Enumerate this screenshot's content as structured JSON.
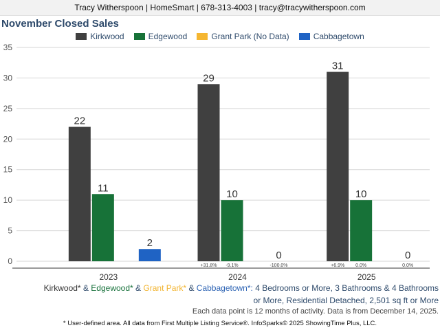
{
  "banner": "Tracy Witherspoon | HomeSmart | 678-313-4003 | tracy@tracywitherspoon.com",
  "chart_data": {
    "type": "bar",
    "title": "November Closed Sales",
    "categories": [
      "2023",
      "2024",
      "2025"
    ],
    "ylim": [
      0,
      35
    ],
    "yticks": [
      0,
      5,
      10,
      15,
      20,
      25,
      30,
      35
    ],
    "grid": true,
    "legend_position": "top-center",
    "series": [
      {
        "name": "Kirkwood",
        "color": "#404040",
        "values": [
          22,
          29,
          31
        ],
        "labels": [
          "22",
          "29",
          "31"
        ]
      },
      {
        "name": "Edgewood",
        "color": "#177238",
        "values": [
          11,
          10,
          10
        ],
        "labels": [
          "11",
          "10",
          "10"
        ]
      },
      {
        "name": "Grant Park (No Data)",
        "color": "#f5b631",
        "values": [
          null,
          null,
          null
        ],
        "labels": [
          "",
          "",
          ""
        ]
      },
      {
        "name": "Cabbagetown",
        "color": "#1f63c4",
        "values": [
          2,
          0,
          0
        ],
        "labels": [
          "2",
          "0",
          "0"
        ]
      }
    ],
    "change_labels": [
      {
        "category": "2024",
        "series": "Kirkwood",
        "text": "+31.8%"
      },
      {
        "category": "2024",
        "series": "Edgewood",
        "text": "-9.1%"
      },
      {
        "category": "2024",
        "series": "Cabbagetown",
        "text": "-100.0%"
      },
      {
        "category": "2025",
        "series": "Kirkwood",
        "text": "+6.9%"
      },
      {
        "category": "2025",
        "series": "Edgewood",
        "text": "0.0%"
      },
      {
        "category": "2025",
        "series": "Cabbagetown",
        "text": "0.0%"
      }
    ]
  },
  "criteria": {
    "kirkwood": "Kirkwood*",
    "amp": "&",
    "edgewood": "Edgewood*",
    "grant_park": "Grant Park*",
    "cabbagetown": "Cabbagetown*:",
    "line1_rest": "4 Bedrooms or More, 3 Bathrooms & 4 Bathrooms",
    "line2": "or More, Residential Detached, 2,501 sq ft or More"
  },
  "period_note": "Each data point is 12 months of activity. Data is from December 14, 2025.",
  "disclaimer": "* User-defined area. All data from First Multiple Listing Service®. InfoSparks© 2025 ShowingTime Plus, LLC."
}
